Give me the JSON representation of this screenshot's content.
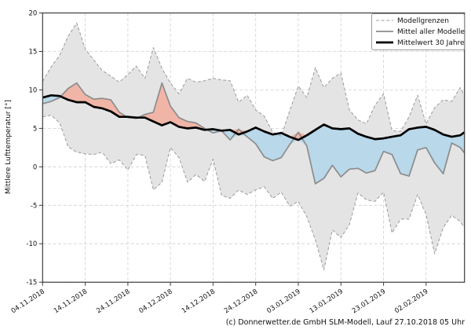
{
  "caption": "(c) Donnerwetter.de GmbH SLM-Modell, Lauf 27.10.2018 05 Uhr",
  "chart_data": {
    "type": "line",
    "title": "",
    "xlabel": "",
    "ylabel": "Mittlere Lufttemperatur [°]",
    "ylim": [
      -15,
      20
    ],
    "yticks": [
      20,
      15,
      10,
      5,
      0,
      -5,
      -10,
      -15
    ],
    "x_tick_labels": [
      "04.11.2018",
      "14.11.2018",
      "24.11.2018",
      "04.12.2018",
      "14.12.2018",
      "24.12.2018",
      "03.01.2019",
      "13.01.2019",
      "23.01.2019",
      "02.02.2019"
    ],
    "x_tick_days": [
      0,
      10,
      20,
      30,
      40,
      50,
      60,
      70,
      80,
      90
    ],
    "grid": true,
    "legend": [
      "Modellgrenzen",
      "Mittel aller Modelle",
      "Mittelwert 30 Jahre"
    ],
    "legend_position": "upper right",
    "days": [
      0,
      2,
      4,
      6,
      8,
      10,
      12,
      14,
      16,
      18,
      20,
      22,
      24,
      26,
      28,
      30,
      32,
      34,
      36,
      38,
      40,
      42,
      44,
      46,
      48,
      50,
      52,
      54,
      56,
      58,
      60,
      62,
      64,
      66,
      68,
      70,
      72,
      74,
      76,
      78,
      80,
      82,
      84,
      86,
      88,
      90,
      92,
      94,
      96,
      98,
      99
    ],
    "series": [
      {
        "name": "Modellgrenzen (obere Grenze)",
        "role": "upper_bound",
        "values": [
          11.1,
          13.0,
          14.5,
          17.0,
          18.7,
          15.3,
          13.9,
          12.5,
          11.8,
          11.0,
          12.0,
          13.1,
          11.5,
          15.5,
          12.8,
          10.9,
          9.5,
          11.5,
          11.0,
          11.2,
          11.5,
          11.3,
          11.2,
          8.4,
          9.3,
          7.4,
          6.6,
          4.5,
          4.0,
          7.3,
          10.5,
          9.0,
          12.9,
          10.3,
          11.5,
          12.2,
          7.4,
          6.1,
          5.6,
          8.0,
          9.5,
          4.7,
          4.6,
          6.5,
          9.3,
          5.6,
          7.7,
          8.7,
          8.5,
          10.3,
          9.3
        ]
      },
      {
        "name": "Modellgrenzen (untere Grenze)",
        "role": "lower_bound",
        "values": [
          6.5,
          6.7,
          5.7,
          2.6,
          1.9,
          1.7,
          1.6,
          1.9,
          0.4,
          0.9,
          -0.4,
          1.6,
          1.5,
          -3.0,
          -2.0,
          2.5,
          1.2,
          -2.0,
          -1.0,
          -1.9,
          1.0,
          -3.7,
          -4.1,
          -3.0,
          -3.6,
          -3.0,
          -2.6,
          -4.1,
          -3.3,
          -5.1,
          -4.5,
          -6.5,
          -9.5,
          -13.4,
          -8.2,
          -9.2,
          -7.5,
          -3.4,
          -4.3,
          -4.5,
          -3.3,
          -8.6,
          -6.8,
          -6.8,
          -3.6,
          -6.2,
          -11.3,
          -7.9,
          -6.3,
          -7.1,
          -7.9
        ]
      },
      {
        "name": "Mittel aller Modelle",
        "role": "model_mean",
        "values": [
          8.2,
          8.5,
          9.0,
          10.2,
          10.9,
          9.4,
          8.8,
          8.9,
          8.7,
          7.1,
          6.4,
          6.3,
          6.8,
          7.1,
          10.9,
          7.9,
          6.4,
          5.9,
          5.7,
          5.0,
          4.4,
          4.7,
          3.5,
          4.9,
          3.9,
          3.0,
          1.3,
          0.8,
          1.2,
          2.9,
          4.5,
          2.7,
          -2.2,
          -1.5,
          0.2,
          -1.3,
          -0.3,
          -0.2,
          -0.8,
          -0.5,
          2.0,
          1.6,
          -0.9,
          -1.2,
          2.2,
          2.5,
          0.5,
          -0.9,
          3.1,
          2.5,
          1.8
        ]
      },
      {
        "name": "Mittelwert 30 Jahre",
        "role": "mean_30y",
        "values": [
          9.0,
          9.3,
          9.2,
          8.7,
          8.4,
          8.4,
          7.8,
          7.6,
          7.2,
          6.5,
          6.5,
          6.4,
          6.4,
          5.9,
          5.4,
          5.8,
          5.2,
          5.0,
          5.1,
          4.8,
          4.9,
          4.7,
          4.8,
          4.2,
          4.6,
          5.1,
          4.6,
          4.2,
          4.4,
          3.9,
          3.5,
          4.1,
          4.8,
          5.5,
          5.0,
          4.9,
          5.0,
          4.3,
          3.9,
          3.6,
          3.7,
          3.9,
          4.1,
          4.9,
          5.1,
          5.2,
          4.8,
          4.2,
          3.9,
          4.1,
          4.5
        ]
      }
    ],
    "colors": {
      "envelope_fill": "#e4e4e4",
      "envelope_border": "#9b9b9b",
      "above_normal_fill": "#f0b5a7",
      "below_normal_fill": "#b9d8e9",
      "model_mean_line": "#8c8c8c",
      "mean30_line": "#000000",
      "grid": "#cfcfcf"
    }
  }
}
